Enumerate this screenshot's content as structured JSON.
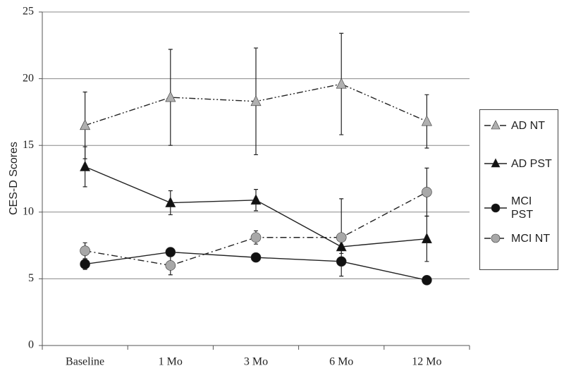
{
  "chart_data": {
    "type": "line",
    "y_label": "CES-D Scores",
    "categories": [
      "Baseline",
      "1 Mo",
      "3 Mo",
      "6 Mo",
      "12 Mo"
    ],
    "ylim": [
      0,
      25
    ],
    "yticks": [
      0,
      5,
      10,
      15,
      20,
      25
    ],
    "grid": true,
    "series": [
      {
        "name": "AD NT",
        "color": "#b0b0b0",
        "marker": "triangle",
        "dash": "dash-dot-dot",
        "values": [
          16.5,
          18.6,
          18.3,
          19.6,
          16.8
        ],
        "errors": [
          2.5,
          3.6,
          4.0,
          3.8,
          2.0
        ]
      },
      {
        "name": "AD PST",
        "color": "#111111",
        "marker": "triangle",
        "dash": "solid",
        "values": [
          13.4,
          10.7,
          10.9,
          7.4,
          8.0
        ],
        "errors": [
          1.5,
          0.9,
          0.8,
          0.5,
          1.7
        ]
      },
      {
        "name": "MCI PST",
        "color": "#111111",
        "marker": "circle",
        "dash": "solid",
        "values": [
          6.1,
          7.0,
          6.6,
          6.3,
          4.9
        ],
        "errors": [
          0.4,
          0.3,
          0.3,
          0.3,
          0.3
        ]
      },
      {
        "name": "MCI NT",
        "color": "#a8a8a8",
        "marker": "circle",
        "dash": "dash-dot",
        "values": [
          7.1,
          6.0,
          8.1,
          8.1,
          11.5
        ],
        "errors": [
          0.6,
          0.7,
          0.5,
          2.9,
          1.8
        ]
      }
    ]
  }
}
